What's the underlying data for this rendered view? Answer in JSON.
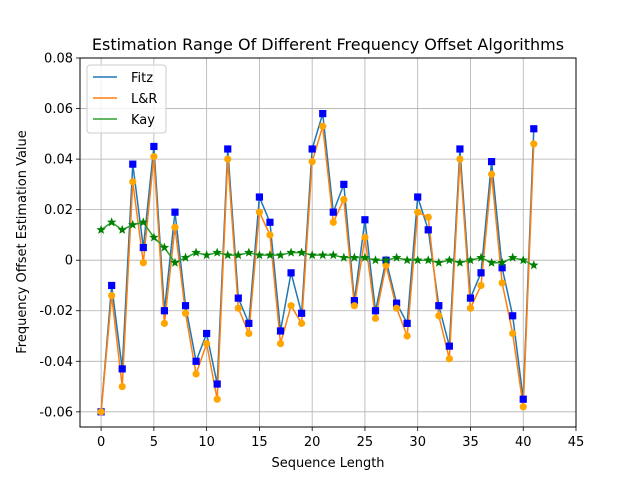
{
  "chart_data": {
    "type": "line",
    "title": "Estimation Range Of Different Frequency Offset Algorithms",
    "xlabel": "Sequence Length",
    "ylabel": "Frequency Offset Estimation Value",
    "xlim": [
      -2,
      45
    ],
    "ylim": [
      -0.066,
      0.08
    ],
    "xticks": [
      0,
      5,
      10,
      15,
      20,
      25,
      30,
      35,
      40,
      45
    ],
    "xtick_labels": [
      "0",
      "5",
      "10",
      "15",
      "20",
      "25",
      "30",
      "35",
      "40",
      "45"
    ],
    "yticks": [
      -0.06,
      -0.04,
      -0.02,
      0,
      0.02,
      0.04,
      0.06,
      0.08
    ],
    "ytick_labels": [
      "-0.06",
      "-0.04",
      "-0.02",
      "0",
      "0.02",
      "0.04",
      "0.06",
      "0.08"
    ],
    "grid": true,
    "legend_position": "top-left",
    "x": [
      0,
      1,
      2,
      3,
      4,
      5,
      6,
      7,
      8,
      9,
      10,
      11,
      12,
      13,
      14,
      15,
      16,
      17,
      18,
      19,
      20,
      21,
      22,
      23,
      24,
      25,
      26,
      27,
      28,
      29,
      30,
      31,
      32,
      33,
      34,
      35,
      36,
      37,
      38,
      39,
      40,
      41
    ],
    "series": [
      {
        "name": "Fitz",
        "color": "#1f77b4",
        "marker": "square",
        "marker_color": "#0000ff",
        "values": [
          -0.06,
          -0.01,
          -0.043,
          0.038,
          0.005,
          0.045,
          -0.02,
          0.019,
          -0.018,
          -0.04,
          -0.029,
          -0.049,
          0.044,
          -0.015,
          -0.025,
          0.025,
          0.015,
          -0.028,
          -0.005,
          -0.021,
          0.044,
          0.058,
          0.019,
          0.03,
          -0.016,
          0.016,
          -0.02,
          0.0,
          -0.017,
          -0.025,
          0.025,
          0.012,
          -0.018,
          -0.034,
          0.044,
          -0.015,
          -0.005,
          0.039,
          -0.003,
          -0.022,
          -0.055,
          0.052
        ]
      },
      {
        "name": "L&R",
        "color": "#ff7f0e",
        "marker": "circle",
        "marker_color": "#ffa500",
        "values": [
          -0.06,
          -0.014,
          -0.05,
          0.031,
          -0.001,
          0.041,
          -0.025,
          0.013,
          -0.021,
          -0.045,
          -0.033,
          -0.055,
          0.04,
          -0.019,
          -0.029,
          0.019,
          0.01,
          -0.033,
          -0.018,
          -0.025,
          0.039,
          0.053,
          0.015,
          0.024,
          -0.018,
          0.009,
          -0.023,
          -0.002,
          -0.019,
          -0.03,
          0.019,
          0.017,
          -0.022,
          -0.039,
          0.04,
          -0.019,
          -0.01,
          0.034,
          -0.009,
          -0.029,
          -0.058,
          0.046
        ]
      },
      {
        "name": "Kay",
        "color": "#2ca02c",
        "marker": "star",
        "marker_color": "#008000",
        "values": [
          0.012,
          0.015,
          0.012,
          0.014,
          0.015,
          0.009,
          0.005,
          -0.001,
          0.001,
          0.003,
          0.002,
          0.003,
          0.002,
          0.002,
          0.003,
          0.002,
          0.002,
          0.002,
          0.003,
          0.003,
          0.002,
          0.002,
          0.002,
          0.001,
          0.001,
          0.001,
          0.0,
          0.0,
          0.001,
          0.0,
          0.0,
          0.0,
          -0.001,
          0.0,
          -0.001,
          0.0,
          0.001,
          -0.001,
          -0.001,
          0.001,
          0.0,
          -0.002
        ]
      }
    ]
  }
}
